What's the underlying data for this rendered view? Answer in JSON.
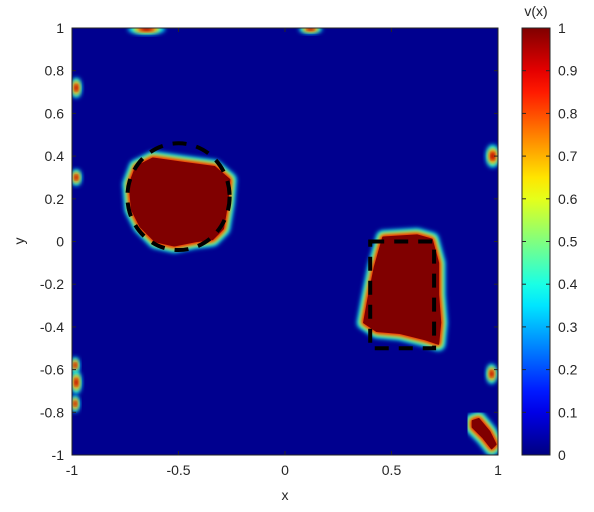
{
  "chart_data": {
    "type": "heatmap",
    "title": "",
    "xlabel": "x",
    "ylabel": "y",
    "xlim": [
      -1,
      1
    ],
    "ylim": [
      -1,
      1
    ],
    "xticks": [
      -1,
      -0.5,
      0,
      0.5,
      1
    ],
    "yticks": [
      -1,
      -0.8,
      -0.6,
      -0.4,
      -0.2,
      0,
      0.2,
      0.4,
      0.6,
      0.8,
      1
    ],
    "xtick_labels": [
      "-1",
      "-0.5",
      "0",
      "0.5",
      "1"
    ],
    "ytick_labels": [
      "-1",
      "-0.8",
      "-0.6",
      "-0.4",
      "-0.2",
      "0",
      "0.2",
      "0.4",
      "0.6",
      "0.8",
      "1"
    ],
    "colormap": "jet",
    "background_value": 0,
    "colorbar": {
      "title": "v(x)",
      "range": [
        0,
        1
      ],
      "ticks": [
        0,
        0.1,
        0.2,
        0.3,
        0.4,
        0.5,
        0.6,
        0.7,
        0.8,
        0.9,
        1
      ],
      "tick_labels": [
        "0",
        "0.1",
        "0.2",
        "0.3",
        "0.4",
        "0.5",
        "0.6",
        "0.7",
        "0.8",
        "0.9",
        "1"
      ]
    },
    "regions": [
      {
        "value": 1,
        "polygon": [
          [
            -0.62,
            0.39
          ],
          [
            -0.48,
            0.37
          ],
          [
            -0.33,
            0.35
          ],
          [
            -0.26,
            0.29
          ],
          [
            -0.27,
            0.18
          ],
          [
            -0.29,
            0.06
          ],
          [
            -0.34,
            0.01
          ],
          [
            -0.42,
            0.0
          ],
          [
            -0.52,
            -0.02
          ],
          [
            -0.61,
            0.0
          ],
          [
            -0.68,
            0.07
          ],
          [
            -0.72,
            0.15
          ],
          [
            -0.73,
            0.27
          ],
          [
            -0.7,
            0.35
          ]
        ]
      },
      {
        "value": 1,
        "polygon": [
          [
            0.46,
            0.02
          ],
          [
            0.62,
            0.03
          ],
          [
            0.69,
            0.01
          ],
          [
            0.72,
            -0.1
          ],
          [
            0.72,
            -0.25
          ],
          [
            0.73,
            -0.38
          ],
          [
            0.72,
            -0.48
          ],
          [
            0.66,
            -0.46
          ],
          [
            0.54,
            -0.43
          ],
          [
            0.43,
            -0.42
          ],
          [
            0.37,
            -0.38
          ],
          [
            0.39,
            -0.27
          ],
          [
            0.42,
            -0.12
          ]
        ]
      },
      {
        "value": 1,
        "polygon": [
          [
            0.88,
            -0.84
          ],
          [
            0.91,
            -0.83
          ],
          [
            0.96,
            -0.89
          ],
          [
            0.99,
            -0.95
          ],
          [
            0.97,
            -0.97
          ],
          [
            0.93,
            -0.92
          ],
          [
            0.88,
            -0.87
          ]
        ]
      }
    ],
    "spots": [
      {
        "x": -0.65,
        "y": 0.995,
        "rx": 0.04,
        "ry": 0.012
      },
      {
        "x": 0.12,
        "y": 0.995,
        "rx": 0.025,
        "ry": 0.01
      },
      {
        "x": -0.98,
        "y": 0.72,
        "rx": 0.012,
        "ry": 0.022
      },
      {
        "x": -0.98,
        "y": 0.3,
        "rx": 0.012,
        "ry": 0.018
      },
      {
        "x": 0.975,
        "y": 0.4,
        "rx": 0.015,
        "ry": 0.025
      },
      {
        "x": 0.97,
        "y": -0.62,
        "rx": 0.012,
        "ry": 0.022
      },
      {
        "x": -0.985,
        "y": -0.58,
        "rx": 0.01,
        "ry": 0.018
      },
      {
        "x": -0.98,
        "y": -0.66,
        "rx": 0.012,
        "ry": 0.025
      },
      {
        "x": -0.985,
        "y": -0.76,
        "rx": 0.01,
        "ry": 0.018
      }
    ],
    "dashed_outlines": [
      {
        "shape": "ellipse",
        "center": [
          -0.5,
          0.21
        ],
        "radii": [
          0.24,
          0.25
        ]
      },
      {
        "shape": "rectangle",
        "x": [
          0.4,
          0.7
        ],
        "y": [
          -0.5,
          0.0
        ]
      }
    ]
  }
}
